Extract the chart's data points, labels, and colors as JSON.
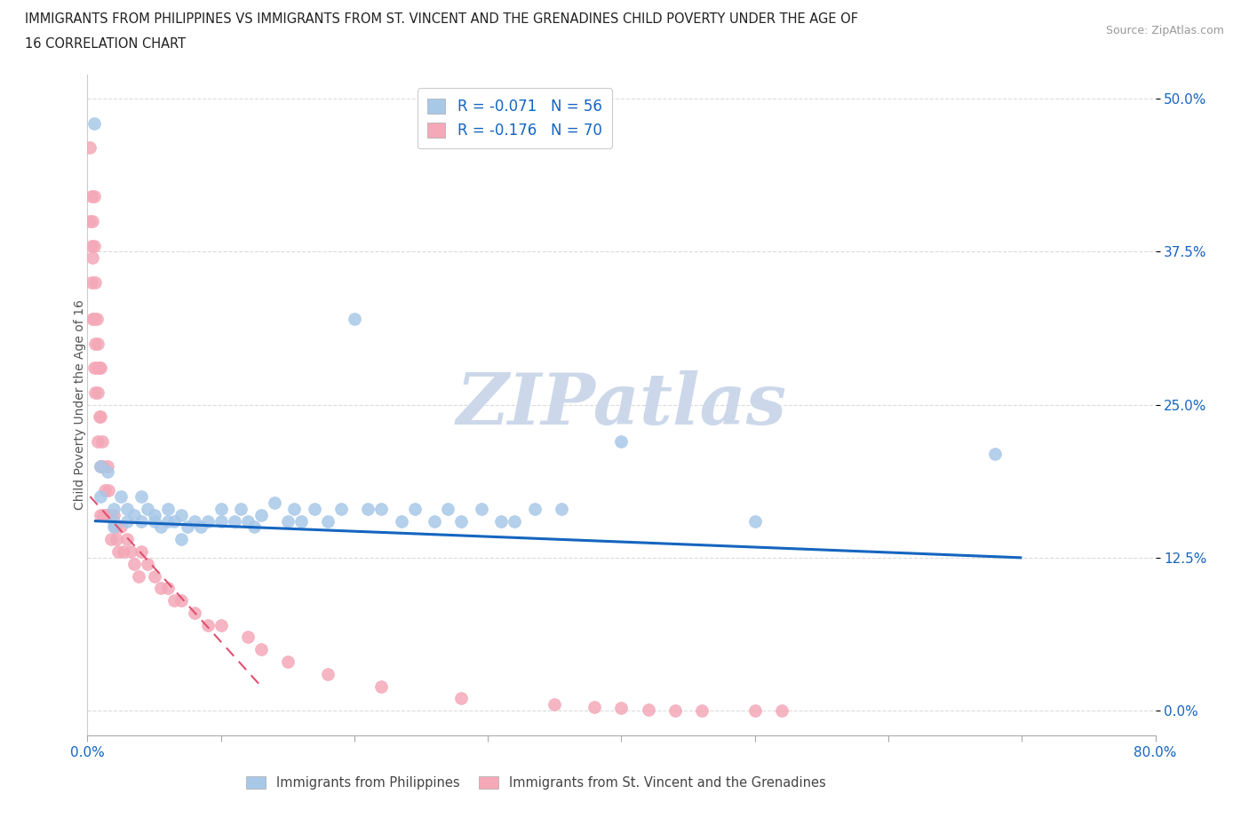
{
  "title_line1": "IMMIGRANTS FROM PHILIPPINES VS IMMIGRANTS FROM ST. VINCENT AND THE GRENADINES CHILD POVERTY UNDER THE AGE OF",
  "title_line2": "16 CORRELATION CHART",
  "source_text": "Source: ZipAtlas.com",
  "ylabel": "Child Poverty Under the Age of 16",
  "legend_label1": "Immigrants from Philippines",
  "legend_label2": "Immigrants from St. Vincent and the Grenadines",
  "r1": -0.071,
  "n1": 56,
  "r2": -0.176,
  "n2": 70,
  "color1": "#a8c8e8",
  "color2": "#f4a8b8",
  "line_color1": "#1565c0",
  "line_color2": "#e05070",
  "xlim": [
    0,
    0.8
  ],
  "ylim": [
    -0.02,
    0.52
  ],
  "yticks": [
    0.0,
    0.125,
    0.25,
    0.375,
    0.5
  ],
  "ytick_labels": [
    "0.0%",
    "12.5%",
    "25.0%",
    "37.5%",
    "50.0%"
  ],
  "xticks": [
    0.0,
    0.1,
    0.2,
    0.3,
    0.4,
    0.5,
    0.6,
    0.7,
    0.8
  ],
  "xtick_labels": [
    "0.0%",
    "",
    "",
    "",
    "",
    "",
    "",
    "",
    "80.0%"
  ],
  "philippines_x": [
    0.005,
    0.01,
    0.01,
    0.015,
    0.02,
    0.02,
    0.02,
    0.025,
    0.03,
    0.03,
    0.035,
    0.04,
    0.04,
    0.045,
    0.05,
    0.05,
    0.055,
    0.06,
    0.06,
    0.065,
    0.07,
    0.07,
    0.075,
    0.08,
    0.085,
    0.09,
    0.1,
    0.1,
    0.11,
    0.115,
    0.12,
    0.125,
    0.13,
    0.14,
    0.15,
    0.155,
    0.16,
    0.17,
    0.18,
    0.19,
    0.2,
    0.21,
    0.22,
    0.235,
    0.245,
    0.26,
    0.27,
    0.28,
    0.295,
    0.31,
    0.32,
    0.335,
    0.355,
    0.4,
    0.5,
    0.68
  ],
  "philippines_y": [
    0.48,
    0.2,
    0.175,
    0.195,
    0.165,
    0.155,
    0.15,
    0.175,
    0.165,
    0.155,
    0.16,
    0.175,
    0.155,
    0.165,
    0.16,
    0.155,
    0.15,
    0.165,
    0.155,
    0.155,
    0.16,
    0.14,
    0.15,
    0.155,
    0.15,
    0.155,
    0.165,
    0.155,
    0.155,
    0.165,
    0.155,
    0.15,
    0.16,
    0.17,
    0.155,
    0.165,
    0.155,
    0.165,
    0.155,
    0.165,
    0.32,
    0.165,
    0.165,
    0.155,
    0.165,
    0.155,
    0.165,
    0.155,
    0.165,
    0.155,
    0.155,
    0.165,
    0.165,
    0.22,
    0.155,
    0.21
  ],
  "stv_x": [
    0.002,
    0.002,
    0.003,
    0.003,
    0.003,
    0.004,
    0.004,
    0.004,
    0.005,
    0.005,
    0.005,
    0.005,
    0.006,
    0.006,
    0.006,
    0.007,
    0.007,
    0.008,
    0.008,
    0.008,
    0.009,
    0.009,
    0.01,
    0.01,
    0.01,
    0.01,
    0.011,
    0.012,
    0.012,
    0.013,
    0.014,
    0.015,
    0.015,
    0.016,
    0.017,
    0.018,
    0.02,
    0.021,
    0.022,
    0.023,
    0.025,
    0.027,
    0.03,
    0.032,
    0.035,
    0.038,
    0.04,
    0.045,
    0.05,
    0.055,
    0.06,
    0.065,
    0.07,
    0.08,
    0.09,
    0.1,
    0.12,
    0.13,
    0.15,
    0.18,
    0.22,
    0.28,
    0.35,
    0.38,
    0.4,
    0.42,
    0.44,
    0.46,
    0.5,
    0.52
  ],
  "stv_y": [
    0.46,
    0.4,
    0.42,
    0.38,
    0.35,
    0.4,
    0.37,
    0.32,
    0.42,
    0.38,
    0.32,
    0.28,
    0.35,
    0.3,
    0.26,
    0.32,
    0.28,
    0.3,
    0.26,
    0.22,
    0.28,
    0.24,
    0.28,
    0.24,
    0.2,
    0.16,
    0.22,
    0.2,
    0.16,
    0.18,
    0.16,
    0.2,
    0.16,
    0.18,
    0.16,
    0.14,
    0.16,
    0.15,
    0.14,
    0.13,
    0.15,
    0.13,
    0.14,
    0.13,
    0.12,
    0.11,
    0.13,
    0.12,
    0.11,
    0.1,
    0.1,
    0.09,
    0.09,
    0.08,
    0.07,
    0.07,
    0.06,
    0.05,
    0.04,
    0.03,
    0.02,
    0.01,
    0.005,
    0.003,
    0.002,
    0.001,
    0.0,
    0.0,
    0.0,
    0.0
  ],
  "watermark": "ZIPatlas",
  "watermark_color": "#ccd8ea",
  "background_color": "#ffffff",
  "grid_color": "#cccccc",
  "trendline1_x0": 0.005,
  "trendline1_x1": 0.7,
  "trendline1_y0": 0.155,
  "trendline1_y1": 0.125,
  "trendline2_x0": 0.002,
  "trendline2_x1": 0.13,
  "trendline2_y0": 0.175,
  "trendline2_y1": 0.02
}
